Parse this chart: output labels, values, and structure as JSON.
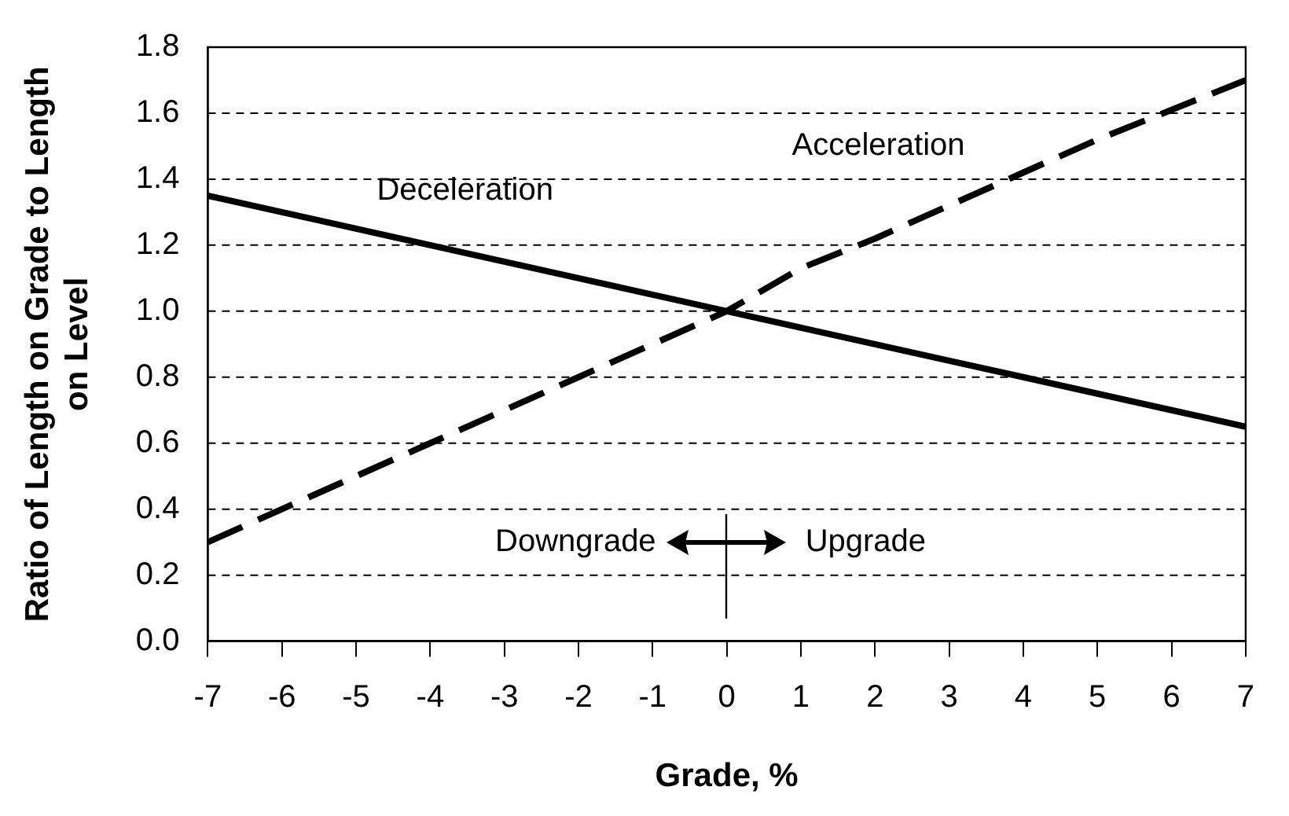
{
  "chart_data": {
    "type": "line",
    "xlabel": "Grade, %",
    "ylabel": "Ratio of Length on Grade to Length on Level",
    "x": [
      -7,
      -6,
      -5,
      -4,
      -3,
      -2,
      -1,
      0,
      1,
      2,
      3,
      4,
      5,
      6,
      7
    ],
    "series": [
      {
        "name": "Deceleration",
        "color": "#000000",
        "line_style": "solid",
        "values": [
          1.35,
          1.3,
          1.25,
          1.2,
          1.15,
          1.1,
          1.05,
          1.0,
          0.95,
          0.9,
          0.85,
          0.8,
          0.75,
          0.7,
          0.65
        ]
      },
      {
        "name": "Acceleration",
        "color": "#000000",
        "line_style": "dashed",
        "values": [
          0.3,
          0.4,
          0.5,
          0.6,
          0.7,
          0.8,
          0.9,
          1.0,
          1.13,
          1.22,
          1.32,
          1.42,
          1.52,
          1.61,
          1.7
        ]
      }
    ],
    "xlim": [
      -7,
      7
    ],
    "xticks": [
      -7,
      -6,
      -5,
      -4,
      -3,
      -2,
      -1,
      0,
      1,
      2,
      3,
      4,
      5,
      6,
      7
    ],
    "ylim": [
      0,
      1.8
    ],
    "yticks": [
      {
        "value": 0,
        "label": "0.0"
      },
      {
        "value": 0.2,
        "label": "0.2"
      },
      {
        "value": 0.4,
        "label": "0.4"
      },
      {
        "value": 0.6,
        "label": "0.6"
      },
      {
        "value": 0.8,
        "label": "0.8"
      },
      {
        "value": 1.0,
        "label": "1.0"
      },
      {
        "value": 1.2,
        "label": "1.2"
      },
      {
        "value": 1.4,
        "label": "1.4"
      },
      {
        "value": 1.6,
        "label": "1.6"
      },
      {
        "value": 1.8,
        "label": "1.8"
      }
    ],
    "grid": "y",
    "legend": false,
    "annotations": [
      "Downgrade",
      "Upgrade"
    ]
  }
}
